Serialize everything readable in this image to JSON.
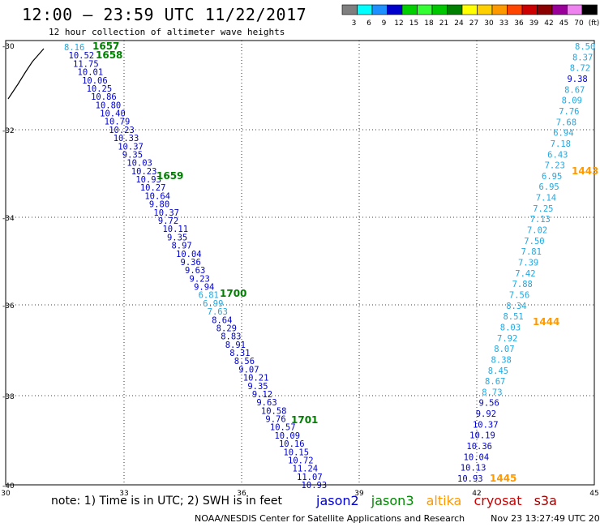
{
  "header": {
    "title": "12:00 – 23:59 UTC 11/22/2017",
    "subtitle": "12 hour collection of altimeter wave heights"
  },
  "color_scale": {
    "colors": [
      "#7f7f7f",
      "#00ffff",
      "#1e90ff",
      "#0000cd",
      "#00d000",
      "#33ff33",
      "#00c800",
      "#008000",
      "#ffff00",
      "#ffd000",
      "#ff9900",
      "#ff4500",
      "#cc0000",
      "#8b0000",
      "#990099",
      "#ee82ee",
      "#000000"
    ],
    "labels": [
      "3",
      "6",
      "9",
      "12",
      "15",
      "18",
      "21",
      "24",
      "27",
      "30",
      "33",
      "36",
      "39",
      "42",
      "45",
      "70",
      "(ft)"
    ]
  },
  "axes": {
    "x_labels": [
      "30",
      "33",
      "36",
      "39",
      "42",
      "45"
    ],
    "y_labels": [
      "-30",
      "-32",
      "-34",
      "-36",
      "-38",
      "-40"
    ]
  },
  "tracks": [
    {
      "satellite": "jason3",
      "values": [
        "8.16",
        "10.52",
        "11.75",
        "10.01",
        "10.06",
        "10.25",
        "10.86",
        "10.80",
        "10.40",
        "10.79",
        "10.23",
        "10.33",
        "10.37",
        "9.35",
        "10.03",
        "10.23",
        "10.93",
        "10.27",
        "10.64",
        "9.80",
        "10.37",
        "9.72",
        "10.11",
        "9.35",
        "8.97",
        "10.04",
        "9.36",
        "9.63",
        "9.23",
        "9.94",
        "6.81",
        "6.99",
        "7.63",
        "8.64",
        "8.29",
        "8.83",
        "8.91",
        "8.31",
        "8.56",
        "9.07",
        "10.21",
        "9.35",
        "9.12",
        "9.63",
        "10.58",
        "9.76",
        "10.57",
        "10.09",
        "10.16",
        "10.15",
        "10.72",
        "11.24",
        "11.07",
        "10.93"
      ],
      "colors": [
        "c",
        "b",
        "b",
        "b",
        "b",
        "b",
        "b",
        "b",
        "b",
        "b",
        "b",
        "b",
        "b",
        "b",
        "b",
        "b",
        "b",
        "b",
        "b",
        "b",
        "b",
        "b",
        "b",
        "b",
        "b",
        "b",
        "b",
        "b",
        "b",
        "b",
        "c",
        "c",
        "c",
        "b",
        "b",
        "b",
        "b",
        "b",
        "b",
        "b",
        "b",
        "b",
        "b",
        "b",
        "b",
        "b",
        "b",
        "b",
        "b",
        "b",
        "b",
        "b",
        "b",
        "b"
      ],
      "times": [
        "1657",
        "1658",
        "1659",
        "1700",
        "1701"
      ]
    },
    {
      "satellite": "altika",
      "values": [
        "8.50",
        "8.37",
        "8.72",
        "9.38",
        "8.67",
        "8.09",
        "7.76",
        "7.68",
        "6.94",
        "7.18",
        "6.43",
        "7.23",
        "6.95",
        "6.95",
        "7.14",
        "7.25",
        "7.13",
        "7.02",
        "7.50",
        "7.81",
        "7.39",
        "7.42",
        "7.88",
        "7.56",
        "8.34",
        "8.51",
        "8.03",
        "7.92",
        "8.07",
        "8.38",
        "8.45",
        "8.67",
        "8.73",
        "9.56",
        "9.92",
        "10.37",
        "10.19",
        "10.36",
        "10.04",
        "10.13",
        "10.93"
      ],
      "colors": [
        "c",
        "c",
        "c",
        "b",
        "c",
        "c",
        "c",
        "c",
        "c",
        "c",
        "c",
        "c",
        "c",
        "c",
        "c",
        "c",
        "c",
        "c",
        "c",
        "c",
        "c",
        "c",
        "c",
        "c",
        "c",
        "c",
        "c",
        "c",
        "c",
        "c",
        "c",
        "c",
        "c",
        "b",
        "b",
        "b",
        "b",
        "b",
        "b",
        "b",
        "b"
      ],
      "times": [
        "1443",
        "1444",
        "1445"
      ]
    }
  ],
  "coastline": "coast",
  "note": "note: 1) Time is in UTC; 2) SWH is in feet",
  "legend": [
    {
      "name": "jason2",
      "color": "#0000cc"
    },
    {
      "name": "jason3",
      "color": "#008800"
    },
    {
      "name": "altika",
      "color": "#ff9900"
    },
    {
      "name": "cryosat",
      "color": "#cc0000"
    },
    {
      "name": "s3a",
      "color": "#990000"
    }
  ],
  "footer": {
    "credit": "NOAA/NESDIS Center for Satellite Applications and Research",
    "timestamp": "Nov 23 13:27:49 UTC 2017"
  },
  "palette": {
    "c": "#22a8e0",
    "b": "#0000cc",
    "time_green": "#008000",
    "time_orange": "#ff9900"
  }
}
